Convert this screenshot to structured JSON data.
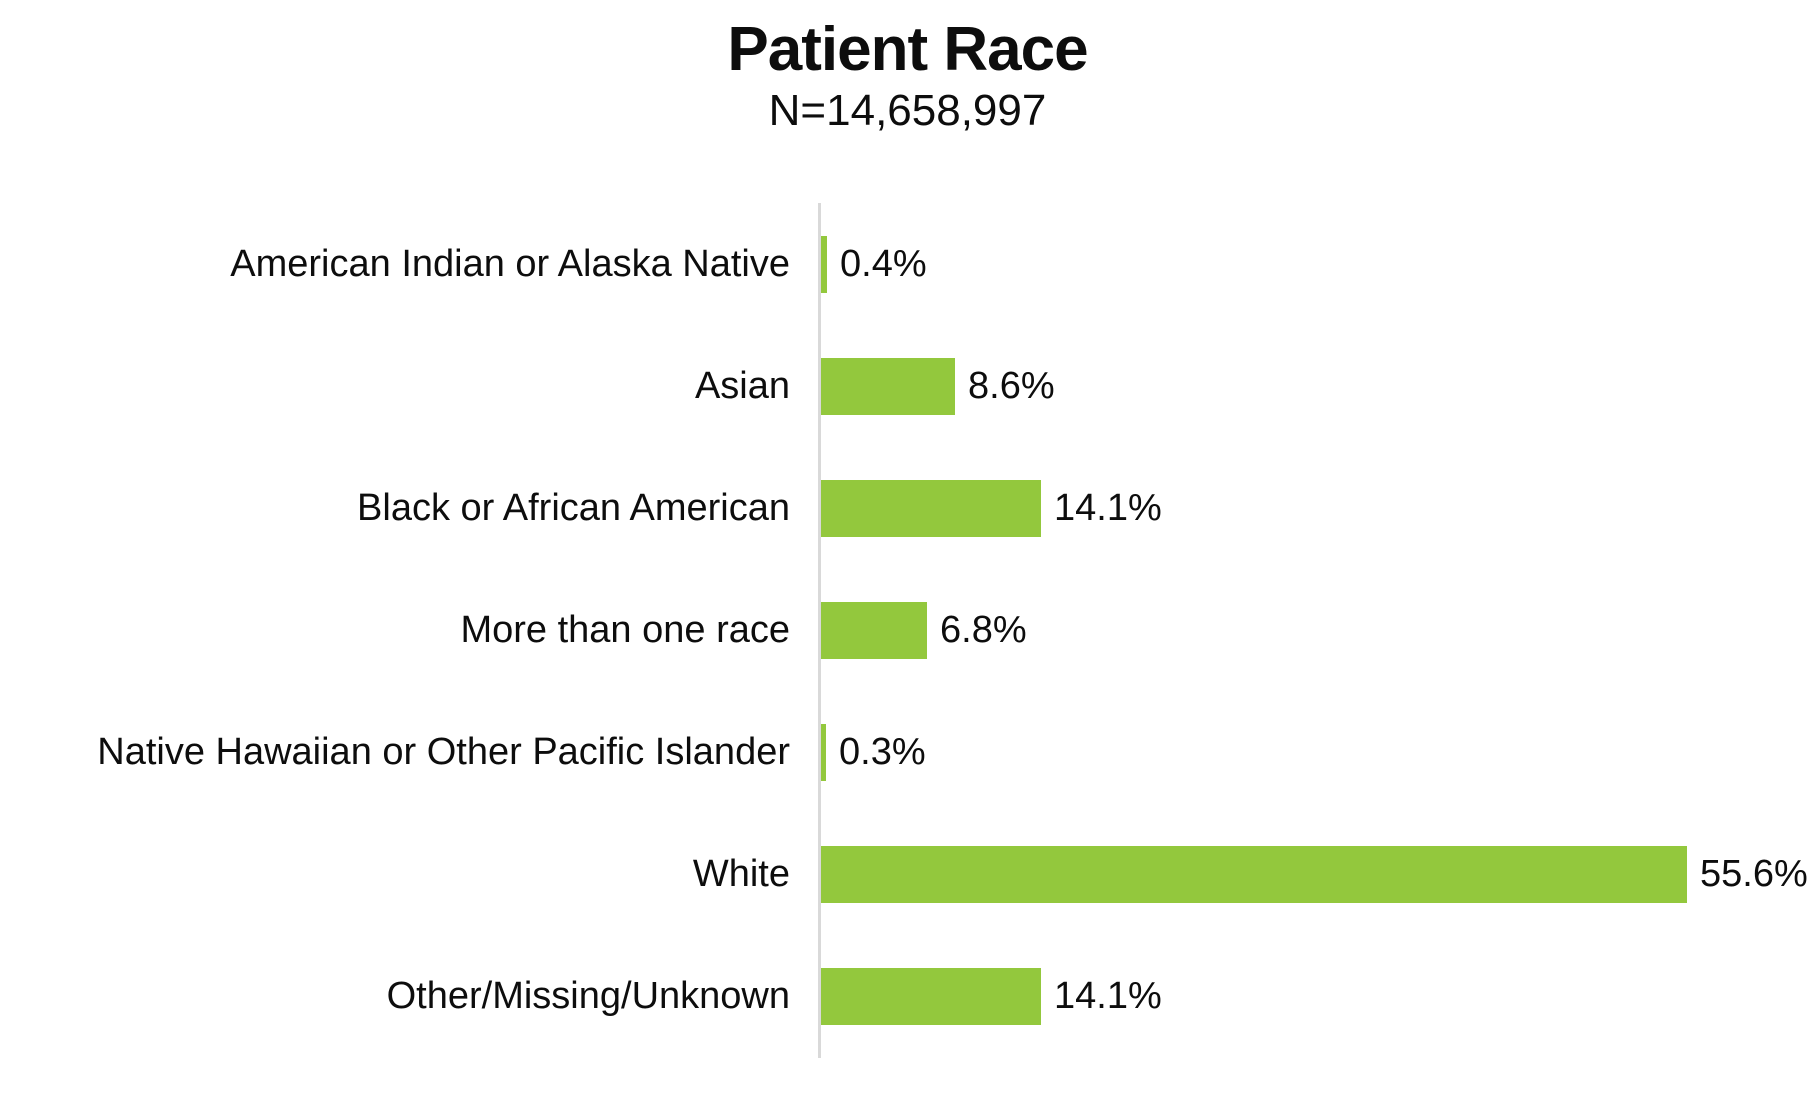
{
  "chart_data": {
    "type": "bar",
    "orientation": "horizontal",
    "title": "Patient Race",
    "subtitle": "N=14,658,997",
    "categories": [
      "American Indian or Alaska Native",
      "Asian",
      "Black or African American",
      "More than one race",
      "Native Hawaiian or Other Pacific Islander",
      "White",
      "Other/Missing/Unknown"
    ],
    "values": [
      0.4,
      8.6,
      14.1,
      6.8,
      0.3,
      55.6,
      14.1
    ],
    "value_labels": [
      "0.4%",
      "8.6%",
      "14.1%",
      "6.8%",
      "0.3%",
      "55.6%",
      "14.1%"
    ],
    "xlabel": "",
    "ylabel": "",
    "xlim": [
      0,
      60
    ],
    "grid": false,
    "legend": false,
    "data_labels_position": "outside-end",
    "bar_color": "#93C83D",
    "axis_line_color": "#D9D9D9",
    "text_color": "#0d0d0d",
    "background_color": "#ffffff"
  }
}
